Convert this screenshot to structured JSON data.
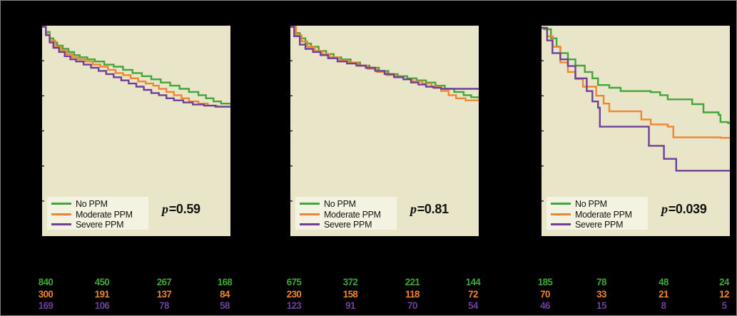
{
  "colors": {
    "background": "#000000",
    "figure_border": "#828282",
    "plot_bg": "#e9e5c8",
    "legend_bg": "#f4f2e1",
    "green": "#43a63b",
    "orange": "#ef8632",
    "purple": "#6f4098",
    "text": "#141414"
  },
  "legend_items": [
    {
      "label": "No PPM",
      "color_key": "green"
    },
    {
      "label": "Moderate PPM",
      "color_key": "orange"
    },
    {
      "label": "Severe PPM",
      "color_key": "purple"
    }
  ],
  "chart_data": {
    "type": "line",
    "subtype": "kaplan-meier-step-curves",
    "n_panels": 3,
    "grid": false,
    "legend_position": "inside-bottom-left",
    "axis_labels_visible": false,
    "y_frac_note": "points are [fraction of x-axis width, fraction of plot height from top]; survival = 1 - y_frac on a 0-1 axis",
    "panels": [
      {
        "p_symbol": "p",
        "p_text": "=0.59",
        "series": [
          {
            "name": "No PPM",
            "color_key": "green",
            "points_frac": [
              [
                0,
                0.005
              ],
              [
                0.02,
                0.03
              ],
              [
                0.04,
                0.06
              ],
              [
                0.06,
                0.08
              ],
              [
                0.08,
                0.095
              ],
              [
                0.11,
                0.11
              ],
              [
                0.14,
                0.125
              ],
              [
                0.17,
                0.14
              ],
              [
                0.2,
                0.15
              ],
              [
                0.24,
                0.16
              ],
              [
                0.28,
                0.17
              ],
              [
                0.33,
                0.185
              ],
              [
                0.38,
                0.195
              ],
              [
                0.43,
                0.21
              ],
              [
                0.48,
                0.225
              ],
              [
                0.53,
                0.24
              ],
              [
                0.58,
                0.255
              ],
              [
                0.63,
                0.27
              ],
              [
                0.68,
                0.285
              ],
              [
                0.73,
                0.3
              ],
              [
                0.78,
                0.315
              ],
              [
                0.83,
                0.33
              ],
              [
                0.87,
                0.345
              ],
              [
                0.91,
                0.36
              ],
              [
                0.95,
                0.37
              ],
              [
                1,
                0.375
              ]
            ]
          },
          {
            "name": "Moderate PPM",
            "color_key": "orange",
            "points_frac": [
              [
                0,
                0.005
              ],
              [
                0.02,
                0.04
              ],
              [
                0.04,
                0.07
              ],
              [
                0.07,
                0.1
              ],
              [
                0.1,
                0.12
              ],
              [
                0.13,
                0.135
              ],
              [
                0.16,
                0.15
              ],
              [
                0.19,
                0.16
              ],
              [
                0.23,
                0.17
              ],
              [
                0.27,
                0.185
              ],
              [
                0.31,
                0.195
              ],
              [
                0.35,
                0.21
              ],
              [
                0.39,
                0.225
              ],
              [
                0.43,
                0.235
              ],
              [
                0.47,
                0.25
              ],
              [
                0.51,
                0.265
              ],
              [
                0.55,
                0.275
              ],
              [
                0.59,
                0.285
              ],
              [
                0.62,
                0.3
              ],
              [
                0.66,
                0.315
              ],
              [
                0.7,
                0.33
              ],
              [
                0.74,
                0.345
              ],
              [
                0.78,
                0.36
              ],
              [
                0.83,
                0.37
              ],
              [
                0.88,
                0.38
              ],
              [
                0.93,
                0.385
              ],
              [
                1,
                0.39
              ]
            ]
          },
          {
            "name": "Severe PPM",
            "color_key": "purple",
            "points_frac": [
              [
                0,
                0.005
              ],
              [
                0.02,
                0.045
              ],
              [
                0.04,
                0.08
              ],
              [
                0.06,
                0.105
              ],
              [
                0.09,
                0.125
              ],
              [
                0.12,
                0.145
              ],
              [
                0.15,
                0.16
              ],
              [
                0.18,
                0.17
              ],
              [
                0.22,
                0.185
              ],
              [
                0.26,
                0.2
              ],
              [
                0.3,
                0.215
              ],
              [
                0.34,
                0.23
              ],
              [
                0.38,
                0.245
              ],
              [
                0.42,
                0.26
              ],
              [
                0.46,
                0.275
              ],
              [
                0.5,
                0.29
              ],
              [
                0.54,
                0.305
              ],
              [
                0.58,
                0.32
              ],
              [
                0.62,
                0.33
              ],
              [
                0.66,
                0.345
              ],
              [
                0.7,
                0.355
              ],
              [
                0.75,
                0.365
              ],
              [
                0.8,
                0.375
              ],
              [
                0.86,
                0.38
              ],
              [
                0.92,
                0.385
              ],
              [
                1,
                0.385
              ]
            ]
          }
        ],
        "at_risk_rows": [
          {
            "color_key": "green",
            "values": [
              "840",
              "450",
              "267",
              "168"
            ]
          },
          {
            "color_key": "orange",
            "values": [
              "300",
              "191",
              "137",
              "84"
            ]
          },
          {
            "color_key": "purple",
            "values": [
              "169",
              "106",
              "78",
              "58"
            ]
          }
        ]
      },
      {
        "p_symbol": "p",
        "p_text": "=0.81",
        "series": [
          {
            "name": "No PPM",
            "color_key": "green",
            "points_frac": [
              [
                0,
                0.005
              ],
              [
                0.03,
                0.035
              ],
              [
                0.05,
                0.06
              ],
              [
                0.08,
                0.085
              ],
              [
                0.11,
                0.1
              ],
              [
                0.15,
                0.12
              ],
              [
                0.19,
                0.135
              ],
              [
                0.23,
                0.15
              ],
              [
                0.27,
                0.16
              ],
              [
                0.32,
                0.175
              ],
              [
                0.37,
                0.19
              ],
              [
                0.42,
                0.2
              ],
              [
                0.47,
                0.215
              ],
              [
                0.52,
                0.23
              ],
              [
                0.57,
                0.24
              ],
              [
                0.62,
                0.25
              ],
              [
                0.67,
                0.26
              ],
              [
                0.72,
                0.27
              ],
              [
                0.77,
                0.285
              ],
              [
                0.82,
                0.3
              ],
              [
                0.87,
                0.315
              ],
              [
                0.92,
                0.33
              ],
              [
                0.96,
                0.34
              ],
              [
                1,
                0.345
              ]
            ]
          },
          {
            "name": "Moderate PPM",
            "color_key": "orange",
            "points_frac": [
              [
                0,
                0.005
              ],
              [
                0.03,
                0.045
              ],
              [
                0.06,
                0.075
              ],
              [
                0.09,
                0.1
              ],
              [
                0.13,
                0.12
              ],
              [
                0.17,
                0.135
              ],
              [
                0.21,
                0.15
              ],
              [
                0.26,
                0.165
              ],
              [
                0.31,
                0.175
              ],
              [
                0.36,
                0.19
              ],
              [
                0.41,
                0.205
              ],
              [
                0.46,
                0.22
              ],
              [
                0.51,
                0.235
              ],
              [
                0.56,
                0.245
              ],
              [
                0.6,
                0.255
              ],
              [
                0.65,
                0.265
              ],
              [
                0.7,
                0.275
              ],
              [
                0.75,
                0.29
              ],
              [
                0.8,
                0.31
              ],
              [
                0.84,
                0.33
              ],
              [
                0.88,
                0.345
              ],
              [
                0.93,
                0.355
              ],
              [
                1,
                0.36
              ]
            ]
          },
          {
            "name": "Severe PPM",
            "color_key": "purple",
            "points_frac": [
              [
                0,
                0.005
              ],
              [
                0.02,
                0.05
              ],
              [
                0.05,
                0.09
              ],
              [
                0.08,
                0.11
              ],
              [
                0.12,
                0.125
              ],
              [
                0.16,
                0.14
              ],
              [
                0.2,
                0.155
              ],
              [
                0.25,
                0.17
              ],
              [
                0.3,
                0.18
              ],
              [
                0.35,
                0.19
              ],
              [
                0.4,
                0.2
              ],
              [
                0.45,
                0.215
              ],
              [
                0.5,
                0.23
              ],
              [
                0.55,
                0.245
              ],
              [
                0.6,
                0.255
              ],
              [
                0.64,
                0.27
              ],
              [
                0.68,
                0.28
              ],
              [
                0.72,
                0.29
              ],
              [
                0.76,
                0.295
              ],
              [
                0.8,
                0.3
              ],
              [
                1,
                0.3
              ]
            ]
          }
        ],
        "at_risk_rows": [
          {
            "color_key": "green",
            "values": [
              "675",
              "372",
              "221",
              "144"
            ]
          },
          {
            "color_key": "orange",
            "values": [
              "230",
              "158",
              "118",
              "72"
            ]
          },
          {
            "color_key": "purple",
            "values": [
              "123",
              "91",
              "70",
              "54"
            ]
          }
        ]
      },
      {
        "p_symbol": "p",
        "p_text": "=0.039",
        "series": [
          {
            "name": "No PPM",
            "color_key": "green",
            "points_frac": [
              [
                0,
                0.01
              ],
              [
                0.014,
                0.017
              ],
              [
                0.05,
                0.06
              ],
              [
                0.08,
                0.1
              ],
              [
                0.1,
                0.13
              ],
              [
                0.14,
                0.16
              ],
              [
                0.18,
                0.19
              ],
              [
                0.23,
                0.22
              ],
              [
                0.27,
                0.25
              ],
              [
                0.3,
                0.282
              ],
              [
                0.36,
                0.295
              ],
              [
                0.42,
                0.311
              ],
              [
                0.58,
                0.316
              ],
              [
                0.63,
                0.33
              ],
              [
                0.67,
                0.35
              ],
              [
                0.8,
                0.373
              ],
              [
                0.86,
                0.412
              ],
              [
                0.94,
                0.424
              ],
              [
                0.95,
                0.458
              ],
              [
                0.99,
                0.463
              ],
              [
                1,
                0.463
              ]
            ]
          },
          {
            "name": "Moderate PPM",
            "color_key": "orange",
            "points_frac": [
              [
                0,
                0.01
              ],
              [
                0.03,
                0.05
              ],
              [
                0.06,
                0.1
              ],
              [
                0.1,
                0.175
              ],
              [
                0.14,
                0.22
              ],
              [
                0.18,
                0.254
              ],
              [
                0.22,
                0.29
              ],
              [
                0.29,
                0.333
              ],
              [
                0.33,
                0.37
              ],
              [
                0.36,
                0.407
              ],
              [
                0.53,
                0.446
              ],
              [
                0.58,
                0.469
              ],
              [
                0.67,
                0.48
              ],
              [
                0.7,
                0.531
              ],
              [
                0.95,
                0.533
              ],
              [
                1,
                0.533
              ]
            ]
          },
          {
            "name": "Severe PPM",
            "color_key": "purple",
            "points_frac": [
              [
                0,
                0.01
              ],
              [
                0.03,
                0.07
              ],
              [
                0.058,
                0.13
              ],
              [
                0.1,
                0.16
              ],
              [
                0.14,
                0.192
              ],
              [
                0.18,
                0.25
              ],
              [
                0.24,
                0.311
              ],
              [
                0.27,
                0.36
              ],
              [
                0.3,
                0.39
              ],
              [
                0.31,
                0.48
              ],
              [
                0.57,
                0.503
              ],
              [
                0.57,
                0.571
              ],
              [
                0.65,
                0.582
              ],
              [
                0.65,
                0.633
              ],
              [
                0.715,
                0.644
              ],
              [
                0.715,
                0.689
              ],
              [
                0.95,
                0.689
              ],
              [
                1,
                0.689
              ]
            ]
          }
        ],
        "at_risk_rows": [
          {
            "color_key": "green",
            "values": [
              "185",
              "78",
              "48",
              "24"
            ]
          },
          {
            "color_key": "orange",
            "values": [
              "70",
              "33",
              "21",
              "12"
            ]
          },
          {
            "color_key": "purple",
            "values": [
              "46",
              "15",
              "8",
              "5"
            ]
          }
        ]
      }
    ]
  }
}
